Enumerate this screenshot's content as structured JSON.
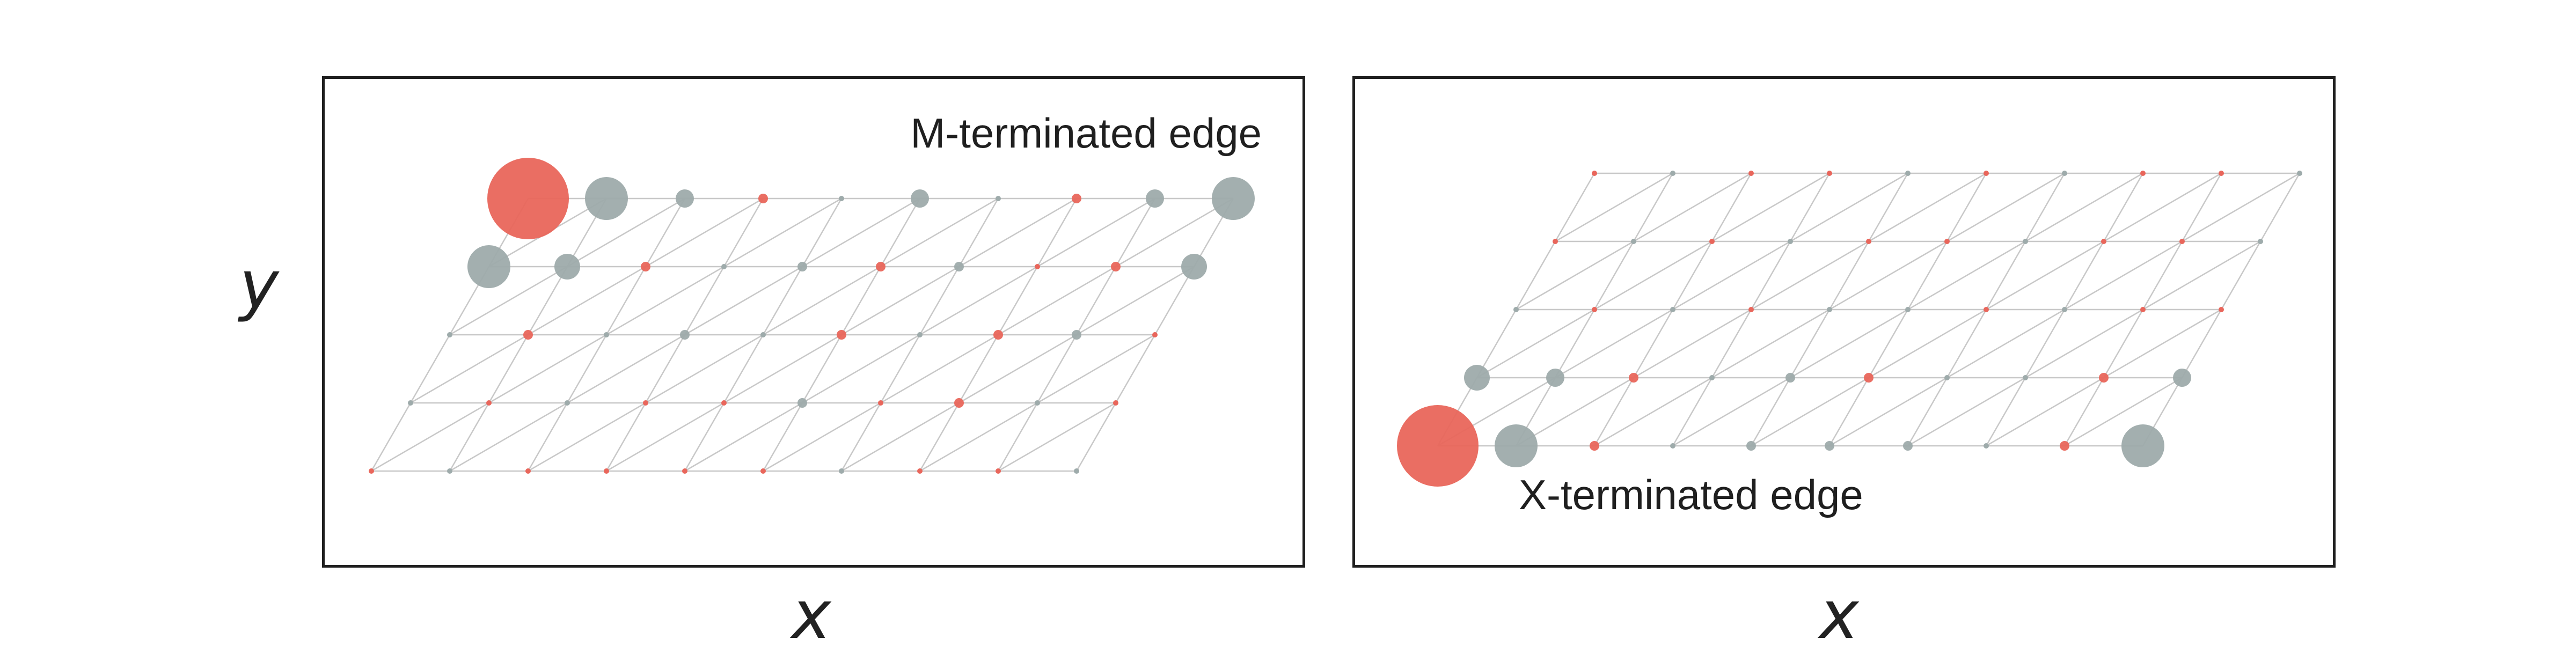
{
  "figure": {
    "y_axis_label": "y",
    "x_axis_labels": [
      "x",
      "x"
    ]
  },
  "panels": [
    {
      "edge_label": "M-terminated edge",
      "lattice": {
        "rows": 5,
        "columns": 10,
        "slant": "rightward-upward",
        "labelled_edge": "top",
        "lattice_line_color": "#c8c8c8",
        "sites": [
          [
            {
              "element": "M",
              "size": "huge"
            },
            {
              "element": "X",
              "size": "large"
            },
            {
              "element": "X",
              "size": "medium"
            },
            {
              "element": "M",
              "size": "small"
            },
            {
              "element": "X",
              "size": "tiny"
            },
            {
              "element": "X",
              "size": "medium"
            },
            {
              "element": "X",
              "size": "tiny"
            },
            {
              "element": "M",
              "size": "small"
            },
            {
              "element": "X",
              "size": "medium"
            },
            {
              "element": "X",
              "size": "large"
            }
          ],
          [
            {
              "element": "X",
              "size": "large"
            },
            {
              "element": "X",
              "size": "medium_large"
            },
            {
              "element": "M",
              "size": "small"
            },
            {
              "element": "X",
              "size": "tiny"
            },
            {
              "element": "X",
              "size": "small"
            },
            {
              "element": "M",
              "size": "small"
            },
            {
              "element": "X",
              "size": "small"
            },
            {
              "element": "M",
              "size": "tiny"
            },
            {
              "element": "M",
              "size": "small"
            },
            {
              "element": "X",
              "size": "medium_large"
            }
          ],
          [
            {
              "element": "X",
              "size": "tiny"
            },
            {
              "element": "M",
              "size": "small"
            },
            {
              "element": "X",
              "size": "tiny"
            },
            {
              "element": "X",
              "size": "small"
            },
            {
              "element": "X",
              "size": "tiny"
            },
            {
              "element": "M",
              "size": "small"
            },
            {
              "element": "X",
              "size": "tiny"
            },
            {
              "element": "M",
              "size": "small"
            },
            {
              "element": "X",
              "size": "small"
            },
            {
              "element": "M",
              "size": "tiny"
            }
          ],
          [
            {
              "element": "X",
              "size": "tiny"
            },
            {
              "element": "M",
              "size": "tiny"
            },
            {
              "element": "X",
              "size": "tiny"
            },
            {
              "element": "M",
              "size": "tiny"
            },
            {
              "element": "M",
              "size": "tiny"
            },
            {
              "element": "X",
              "size": "small"
            },
            {
              "element": "M",
              "size": "tiny"
            },
            {
              "element": "M",
              "size": "small"
            },
            {
              "element": "X",
              "size": "tiny"
            },
            {
              "element": "M",
              "size": "tiny"
            }
          ],
          [
            {
              "element": "M",
              "size": "tiny"
            },
            {
              "element": "X",
              "size": "tiny"
            },
            {
              "element": "M",
              "size": "tiny"
            },
            {
              "element": "M",
              "size": "tiny"
            },
            {
              "element": "M",
              "size": "tiny"
            },
            {
              "element": "M",
              "size": "tiny"
            },
            {
              "element": "X",
              "size": "tiny"
            },
            {
              "element": "M",
              "size": "tiny"
            },
            {
              "element": "M",
              "size": "tiny"
            },
            {
              "element": "X",
              "size": "tiny"
            }
          ]
        ]
      }
    },
    {
      "edge_label": "X-terminated edge",
      "lattice": {
        "rows": 5,
        "columns": 10,
        "slant": "rightward-upward",
        "labelled_edge": "bottom",
        "lattice_line_color": "#c8c8c8",
        "sites": [
          [
            {
              "element": "M",
              "size": "tiny"
            },
            {
              "element": "X",
              "size": "tiny"
            },
            {
              "element": "M",
              "size": "tiny"
            },
            {
              "element": "M",
              "size": "tiny"
            },
            {
              "element": "X",
              "size": "tiny"
            },
            {
              "element": "M",
              "size": "tiny"
            },
            {
              "element": "X",
              "size": "tiny"
            },
            {
              "element": "M",
              "size": "tiny"
            },
            {
              "element": "M",
              "size": "tiny"
            },
            {
              "element": "X",
              "size": "tiny"
            }
          ],
          [
            {
              "element": "M",
              "size": "tiny"
            },
            {
              "element": "X",
              "size": "tiny"
            },
            {
              "element": "M",
              "size": "tiny"
            },
            {
              "element": "X",
              "size": "tiny"
            },
            {
              "element": "M",
              "size": "tiny"
            },
            {
              "element": "M",
              "size": "tiny"
            },
            {
              "element": "X",
              "size": "tiny"
            },
            {
              "element": "M",
              "size": "tiny"
            },
            {
              "element": "M",
              "size": "tiny"
            },
            {
              "element": "X",
              "size": "tiny"
            }
          ],
          [
            {
              "element": "X",
              "size": "tiny"
            },
            {
              "element": "M",
              "size": "tiny"
            },
            {
              "element": "X",
              "size": "tiny"
            },
            {
              "element": "M",
              "size": "tiny"
            },
            {
              "element": "X",
              "size": "tiny"
            },
            {
              "element": "X",
              "size": "tiny"
            },
            {
              "element": "M",
              "size": "tiny"
            },
            {
              "element": "X",
              "size": "tiny"
            },
            {
              "element": "M",
              "size": "tiny"
            },
            {
              "element": "M",
              "size": "tiny"
            }
          ],
          [
            {
              "element": "X",
              "size": "medium_large"
            },
            {
              "element": "X",
              "size": "medium"
            },
            {
              "element": "M",
              "size": "small"
            },
            {
              "element": "X",
              "size": "tiny"
            },
            {
              "element": "X",
              "size": "small"
            },
            {
              "element": "M",
              "size": "small"
            },
            {
              "element": "X",
              "size": "tiny"
            },
            {
              "element": "X",
              "size": "tiny"
            },
            {
              "element": "M",
              "size": "small"
            },
            {
              "element": "X",
              "size": "medium"
            }
          ],
          [
            {
              "element": "M",
              "size": "huge"
            },
            {
              "element": "X",
              "size": "large"
            },
            {
              "element": "M",
              "size": "small"
            },
            {
              "element": "X",
              "size": "tiny"
            },
            {
              "element": "X",
              "size": "small"
            },
            {
              "element": "X",
              "size": "small"
            },
            {
              "element": "X",
              "size": "small"
            },
            {
              "element": "X",
              "size": "tiny"
            },
            {
              "element": "M",
              "size": "small"
            },
            {
              "element": "X",
              "size": "large"
            }
          ]
        ]
      }
    }
  ],
  "colors": {
    "M": "#e9665b",
    "X": "#9eabab",
    "lattice_line": "#c8c8c8",
    "frame": "#1f1f1f"
  }
}
